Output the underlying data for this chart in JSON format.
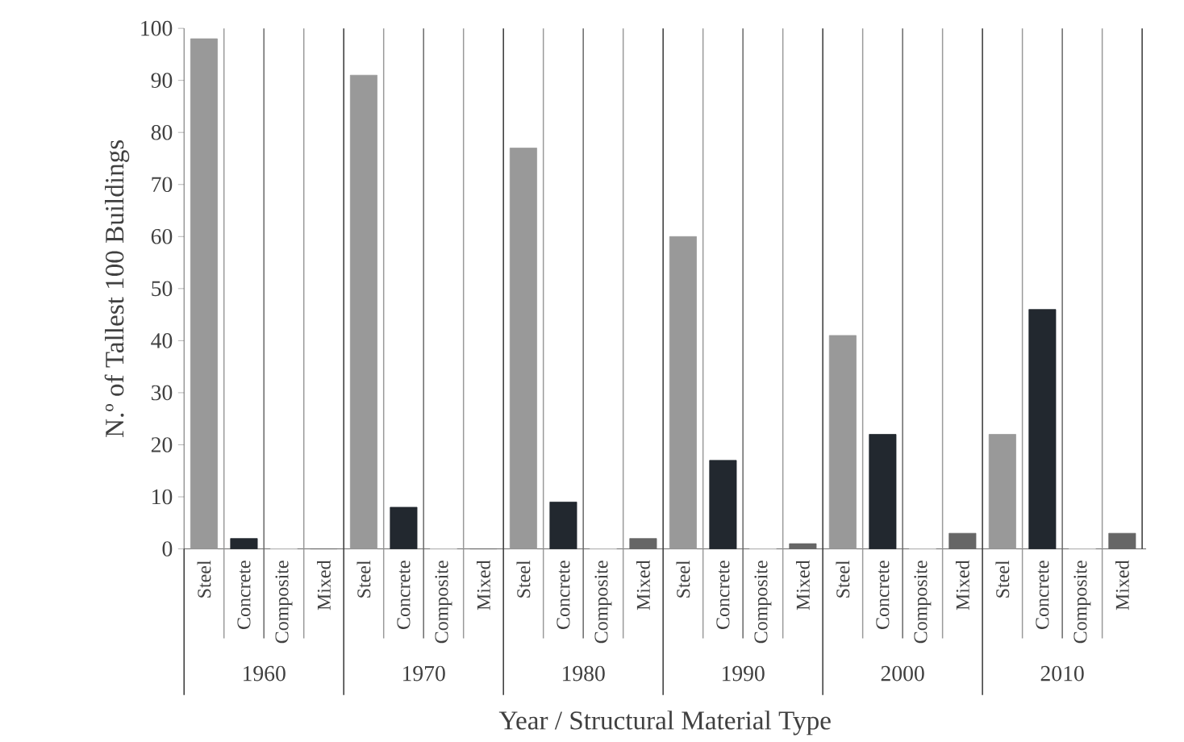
{
  "chart_data": {
    "type": "bar",
    "xlabel": "Year / Structural Material Type",
    "ylabel": "N.º of Tallest 100 Buildings",
    "categories": [
      "Steel",
      "Concrete",
      "Composite",
      "Mixed",
      "Steel",
      "Concrete",
      "Composite",
      "Mixed",
      "Steel",
      "Concrete",
      "Composite",
      "Mixed",
      "Steel",
      "Concrete",
      "Composite",
      "Mixed",
      "Steel",
      "Concrete",
      "Composite",
      "Mixed",
      "Steel",
      "Concrete",
      "Composite",
      "Mixed"
    ],
    "values": [
      98,
      2,
      0,
      0,
      91,
      8,
      0,
      0,
      77,
      9,
      0,
      2,
      60,
      17,
      0,
      1,
      41,
      22,
      0,
      3,
      22,
      46,
      0,
      3
    ],
    "colors": [
      "#999999",
      "#22282f",
      "#bbbbbb",
      "#666666",
      "#999999",
      "#22282f",
      "#bbbbbb",
      "#666666",
      "#999999",
      "#22282f",
      "#bbbbbb",
      "#666666",
      "#999999",
      "#22282f",
      "#bbbbbb",
      "#666666",
      "#999999",
      "#22282f",
      "#bbbbbb",
      "#666666",
      "#999999",
      "#22282f",
      "#bbbbbb",
      "#666666"
    ],
    "annotations": [
      "1960",
      "1970",
      "1980",
      "1990",
      "2000",
      "2010"
    ],
    "ylim": [
      0,
      100
    ],
    "yticks": [
      0,
      10,
      20,
      30,
      40,
      50,
      60,
      70,
      80,
      90,
      100
    ],
    "grid": "x"
  }
}
